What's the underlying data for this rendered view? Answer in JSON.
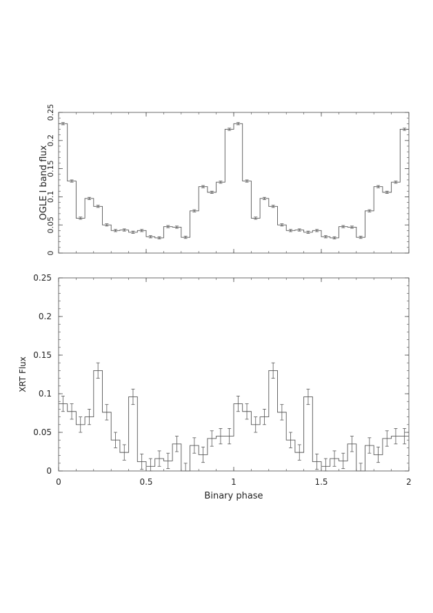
{
  "chart_data": [
    {
      "type": "step",
      "ylabel": "OGLE I band flux",
      "xlabel": "",
      "xlim": [
        0,
        2
      ],
      "ylim": [
        0,
        0.25
      ],
      "ytick_labels": [
        "0",
        "0.05",
        "0.1",
        "0.15",
        "0.2",
        "0.25"
      ],
      "yticks": [
        0,
        0.05,
        0.1,
        0.15,
        0.2,
        0.25
      ],
      "xticks": [
        0,
        0.5,
        1,
        1.5,
        2
      ],
      "xtick_labels": [],
      "bin_width": 0.05,
      "x": [
        0,
        0.05,
        0.1,
        0.15,
        0.2,
        0.25,
        0.3,
        0.35,
        0.4,
        0.45,
        0.5,
        0.55,
        0.6,
        0.65,
        0.7,
        0.75,
        0.8,
        0.85,
        0.9,
        0.95,
        1.0,
        1.05,
        1.1,
        1.15,
        1.2,
        1.25,
        1.3,
        1.35,
        1.4,
        1.45,
        1.5,
        1.55,
        1.6,
        1.65,
        1.7,
        1.75,
        1.8,
        1.85,
        1.9,
        1.95
      ],
      "values": [
        0.23,
        0.128,
        0.062,
        0.097,
        0.083,
        0.05,
        0.04,
        0.041,
        0.037,
        0.04,
        0.029,
        0.027,
        0.047,
        0.046,
        0.028,
        0.075,
        0.118,
        0.108,
        0.126,
        0.22,
        0.23,
        0.128,
        0.062,
        0.097,
        0.083,
        0.05,
        0.04,
        0.041,
        0.037,
        0.04,
        0.029,
        0.027,
        0.047,
        0.046,
        0.028,
        0.075,
        0.118,
        0.108,
        0.126,
        0.22
      ],
      "errors": [
        0.002,
        0.002,
        0.002,
        0.002,
        0.002,
        0.002,
        0.002,
        0.002,
        0.002,
        0.002,
        0.002,
        0.002,
        0.002,
        0.002,
        0.002,
        0.002,
        0.002,
        0.002,
        0.002,
        0.002,
        0.002,
        0.002,
        0.002,
        0.002,
        0.002,
        0.002,
        0.002,
        0.002,
        0.002,
        0.002,
        0.002,
        0.002,
        0.002,
        0.002,
        0.002,
        0.002,
        0.002,
        0.002,
        0.002,
        0.002
      ]
    },
    {
      "type": "step",
      "ylabel": "XRT Flux",
      "xlabel": "Binary phase",
      "xlim": [
        0,
        2
      ],
      "ylim": [
        0,
        0.25
      ],
      "ytick_labels": [
        "0",
        "0.05",
        "0.1",
        "0.15",
        "0.2",
        "0.25"
      ],
      "yticks": [
        0,
        0.05,
        0.1,
        0.15,
        0.2,
        0.25
      ],
      "xticks": [
        0,
        0.5,
        1,
        1.5,
        2
      ],
      "xtick_labels": [
        "0",
        "0.5",
        "1",
        "1.5",
        "2"
      ],
      "bin_width": 0.05,
      "x": [
        0,
        0.05,
        0.1,
        0.15,
        0.2,
        0.25,
        0.3,
        0.35,
        0.4,
        0.45,
        0.5,
        0.55,
        0.6,
        0.65,
        0.7,
        0.75,
        0.8,
        0.85,
        0.9,
        0.95,
        1.0,
        1.05,
        1.1,
        1.15,
        1.2,
        1.25,
        1.3,
        1.35,
        1.4,
        1.45,
        1.5,
        1.55,
        1.6,
        1.65,
        1.7,
        1.75,
        1.8,
        1.85,
        1.9,
        1.95
      ],
      "values": [
        0.087,
        0.077,
        0.06,
        0.07,
        0.13,
        0.076,
        0.04,
        0.024,
        0.096,
        0.012,
        0.006,
        0.016,
        0.013,
        0.035,
        0.0,
        0.033,
        0.021,
        0.042,
        0.045,
        0.045,
        0.087,
        0.077,
        0.06,
        0.07,
        0.13,
        0.076,
        0.04,
        0.024,
        0.096,
        0.012,
        0.006,
        0.016,
        0.013,
        0.035,
        0.0,
        0.033,
        0.021,
        0.042,
        0.045,
        0.045
      ],
      "errors": [
        0.01,
        0.01,
        0.01,
        0.01,
        0.01,
        0.01,
        0.01,
        0.01,
        0.01,
        0.01,
        0.01,
        0.01,
        0.01,
        0.01,
        0.01,
        0.01,
        0.01,
        0.01,
        0.01,
        0.01,
        0.01,
        0.01,
        0.01,
        0.01,
        0.01,
        0.01,
        0.01,
        0.01,
        0.01,
        0.01,
        0.01,
        0.01,
        0.01,
        0.01,
        0.01,
        0.01,
        0.01,
        0.01,
        0.01,
        0.01
      ]
    }
  ],
  "style": {
    "line_color": "#555555",
    "axis_color": "#444444",
    "text_color": "#222222"
  }
}
